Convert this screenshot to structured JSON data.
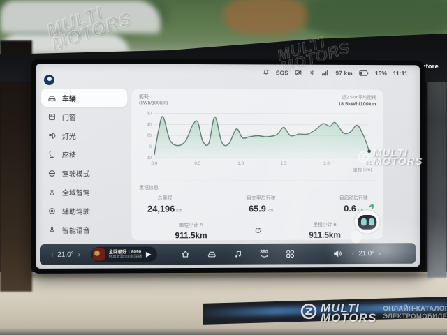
{
  "overlay": {
    "mask_notice": "Please peel off this mask before using",
    "watermark": {
      "brand_line1": "MULTI",
      "brand_line2": "MOTORS",
      "catalog_line1": "ОНЛАЙН-КАТАЛОГ",
      "catalog_line2": "ЭЛЕКТРОМОБИЛЕЙ"
    }
  },
  "status_bar": {
    "sos": "SOS",
    "range": "97 km",
    "battery_percent": "15%",
    "time": "11:11"
  },
  "sidebar": {
    "items": [
      {
        "label": "车辆",
        "active": true
      },
      {
        "label": "门窗",
        "active": false
      },
      {
        "label": "灯光",
        "active": false
      },
      {
        "label": "座椅",
        "active": false
      },
      {
        "label": "驾驶模式",
        "active": false
      },
      {
        "label": "全域智驾",
        "active": false
      },
      {
        "label": "辅助驾驶",
        "active": false
      },
      {
        "label": "智能语音",
        "active": false
      }
    ]
  },
  "chart_data": {
    "type": "area",
    "title": "能耗",
    "unit_label": "(kWh/100km)",
    "avg_label": "近2.5km平均能耗",
    "avg_value": "18.5kWh/100km",
    "xlabel": "里程 (km)",
    "ylabel": "kWh/100km",
    "xlim": [
      0,
      2.5
    ],
    "ylim": [
      -20,
      60
    ],
    "yticks": [
      60,
      40,
      20,
      0,
      -20
    ],
    "xticks": [
      0.0,
      0.5,
      1.0,
      1.5,
      2.0,
      2.5
    ],
    "grid": true,
    "legend": "none",
    "line_color": "#5f7a6d",
    "fill_color": "#8ecbaa",
    "x": [
      0,
      0.05,
      0.1,
      0.18,
      0.27,
      0.36,
      0.44,
      0.5,
      0.56,
      0.63,
      0.7,
      0.78,
      0.86,
      0.95,
      1.02,
      1.1,
      1.2,
      1.3,
      1.42,
      1.5,
      1.58,
      1.68,
      1.78,
      1.88,
      1.96,
      2.04,
      2.1,
      2.2,
      2.28,
      2.36,
      2.44,
      2.5
    ],
    "y": [
      -15,
      30,
      54,
      12,
      2,
      10,
      38,
      45,
      10,
      6,
      54,
      8,
      5,
      32,
      16,
      18,
      20,
      18,
      22,
      35,
      20,
      23,
      23,
      32,
      42,
      37,
      44,
      25,
      27,
      39,
      18,
      -8
    ]
  },
  "mileage": {
    "section_title": "里程信息",
    "stats": [
      {
        "label": "总里程",
        "value": "24,196",
        "unit": "km"
      },
      {
        "label": "自充电后行驶",
        "value": "65.9",
        "unit": "km"
      },
      {
        "label": "自启动后行驶",
        "value": "0.6",
        "unit": "km"
      }
    ],
    "trips": [
      {
        "label": "里程小计 A",
        "value": "911.5",
        "unit": "km"
      },
      {
        "label": "里程小计 B",
        "value": "911.5",
        "unit": "km"
      }
    ]
  },
  "dock": {
    "temp_left": "21.0°",
    "temp_right": "21.0°",
    "media_title": "全网最好丨8090",
    "media_subtitle": "经典老歌100首联播",
    "label_360": "360"
  }
}
